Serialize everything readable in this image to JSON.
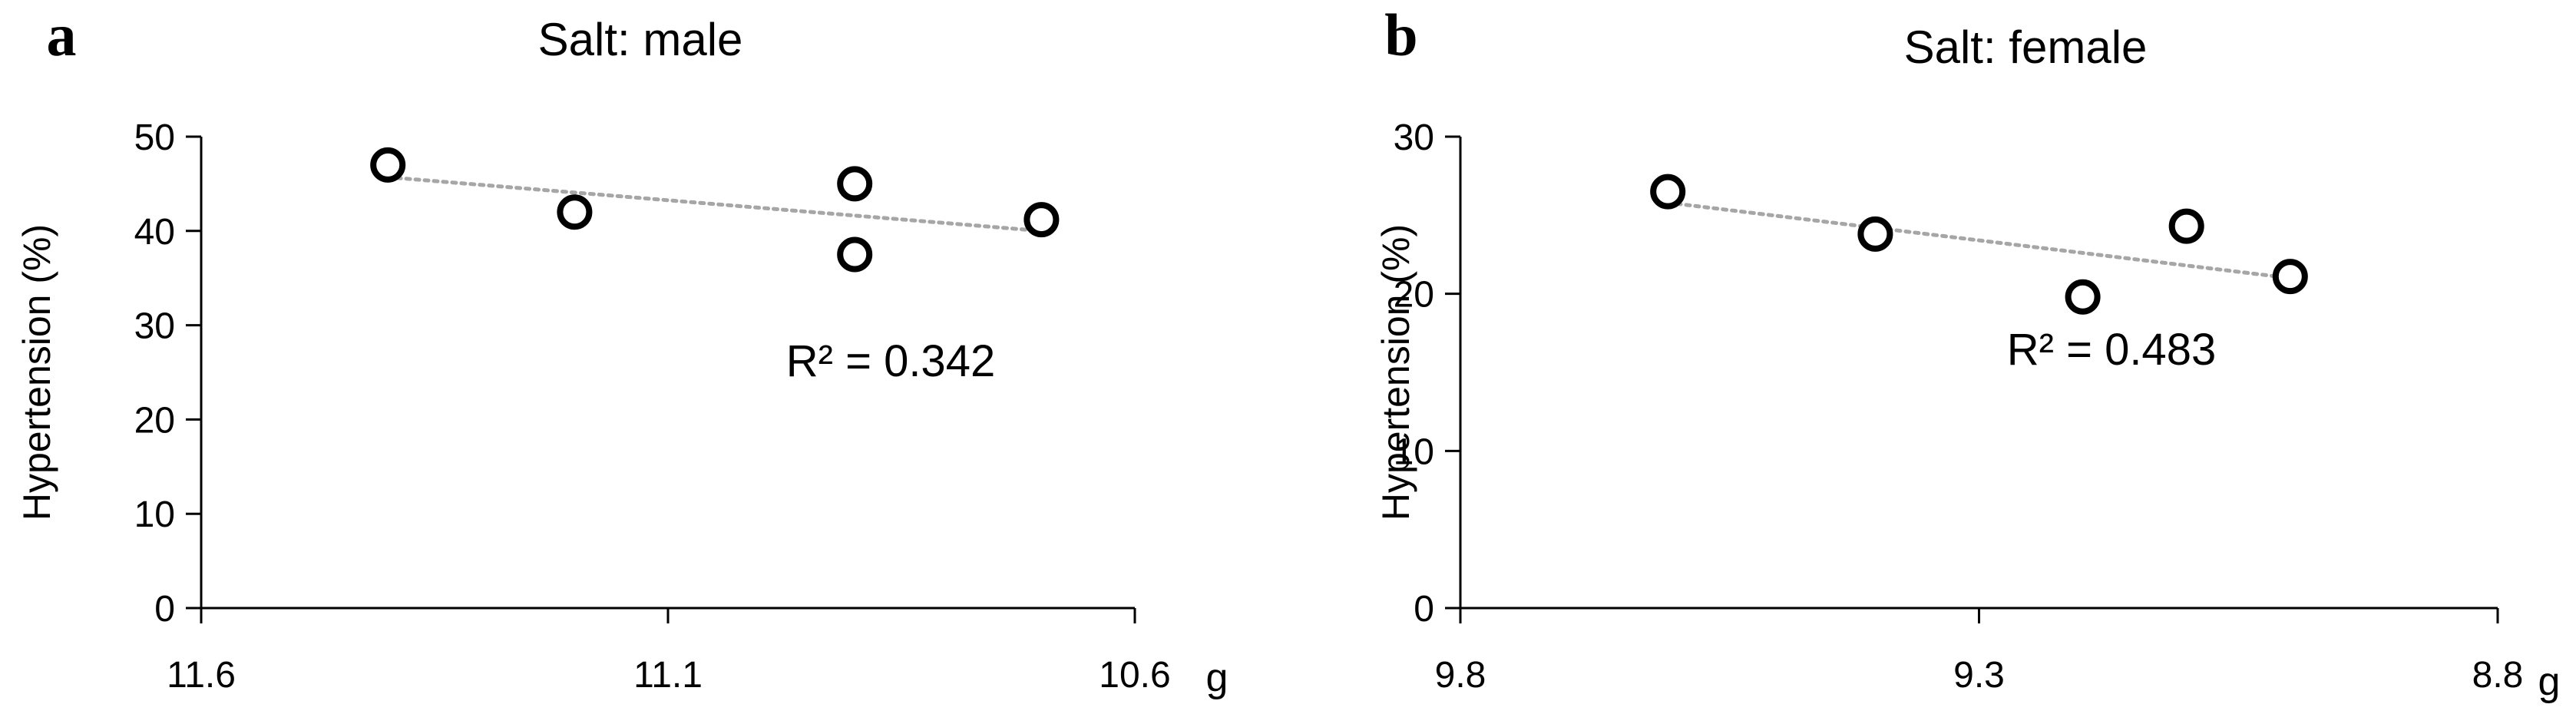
{
  "chart_data": [
    {
      "panel_label": "a",
      "type": "scatter",
      "title": "Salt: male",
      "xlabel": "g",
      "ylabel": "Hypertension (%)",
      "x_reversed": true,
      "xlim": [
        11.6,
        10.6
      ],
      "ylim": [
        0,
        50
      ],
      "x_ticks": [
        "11.6",
        "11.1",
        "10.6"
      ],
      "x_tick_values": [
        11.6,
        11.1,
        10.6
      ],
      "y_ticks": [
        "0",
        "10",
        "20",
        "30",
        "40",
        "50"
      ],
      "y_tick_values": [
        0,
        10,
        20,
        30,
        40,
        50
      ],
      "grid": false,
      "points": [
        {
          "x": 11.4,
          "y": 47.0
        },
        {
          "x": 11.2,
          "y": 42.0
        },
        {
          "x": 10.9,
          "y": 45.0
        },
        {
          "x": 10.9,
          "y": 37.5
        },
        {
          "x": 10.7,
          "y": 41.2
        }
      ],
      "trendline": {
        "style": "dotted",
        "color": "#a6a6a6",
        "x": [
          11.4,
          10.7
        ],
        "y": [
          45.7,
          40.0
        ]
      },
      "annotation": "R² = 0.342"
    },
    {
      "panel_label": "b",
      "type": "scatter",
      "title": "Salt: female",
      "xlabel": "g",
      "ylabel": "Hypertension (%)",
      "x_reversed": true,
      "xlim": [
        9.8,
        8.8
      ],
      "ylim": [
        0,
        30
      ],
      "x_ticks": [
        "9.8",
        "9.3",
        "8.8"
      ],
      "x_tick_values": [
        9.8,
        9.3,
        8.8
      ],
      "y_ticks": [
        "0",
        "10",
        "20",
        "30"
      ],
      "y_tick_values": [
        0,
        10,
        20,
        30
      ],
      "grid": false,
      "points": [
        {
          "x": 9.6,
          "y": 26.5
        },
        {
          "x": 9.4,
          "y": 23.8
        },
        {
          "x": 9.2,
          "y": 19.8
        },
        {
          "x": 9.1,
          "y": 24.3
        },
        {
          "x": 9.0,
          "y": 21.1
        }
      ],
      "trendline": {
        "style": "dotted",
        "color": "#a6a6a6",
        "x": [
          9.6,
          9.0
        ],
        "y": [
          25.8,
          21.0
        ]
      },
      "annotation": "R² = 0.483"
    }
  ]
}
